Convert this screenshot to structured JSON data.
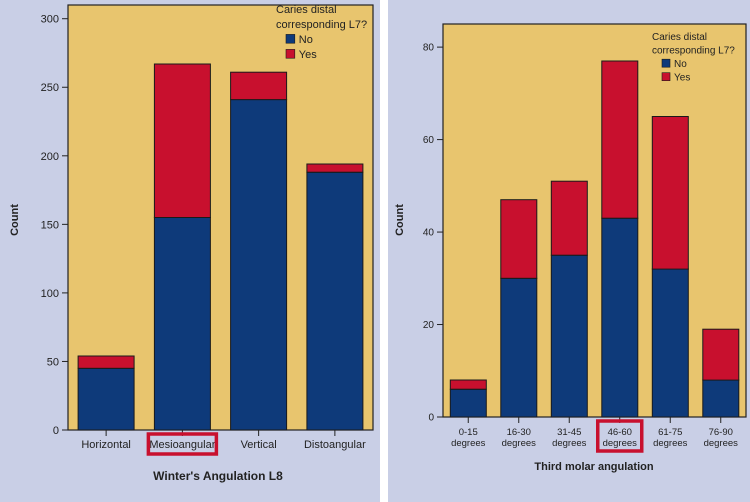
{
  "colors": {
    "panel_bg": "#c9cfe6",
    "plot_bg": "#e8c56e",
    "no": "#0e3a7a",
    "yes": "#c8102e",
    "highlight": "#c8102e"
  },
  "chart_data": [
    {
      "type": "bar",
      "stacked": true,
      "categories": [
        "Horizontal",
        "Mesioangular",
        "Vertical",
        "Distoangular"
      ],
      "series": [
        {
          "name": "No",
          "values": [
            45,
            155,
            241,
            188
          ]
        },
        {
          "name": "Yes",
          "values": [
            9,
            112,
            20,
            6
          ]
        }
      ],
      "title": "",
      "xlabel": "Winter's Angulation L8",
      "ylabel": "Count",
      "ylim": [
        0,
        310
      ],
      "yticks": [
        0,
        50,
        100,
        150,
        200,
        250,
        300
      ],
      "legend_title": "Caries distal corresponding L7?",
      "legend_position": "top-right",
      "grid": false,
      "highlighted_category": "Mesioangular"
    },
    {
      "type": "bar",
      "stacked": true,
      "categories": [
        "0-15 degrees",
        "16-30 degrees",
        "31-45 degrees",
        "46-60 degrees",
        "61-75 degrees",
        "76-90 degrees"
      ],
      "series": [
        {
          "name": "No",
          "values": [
            6,
            30,
            35,
            43,
            32,
            8
          ]
        },
        {
          "name": "Yes",
          "values": [
            2,
            17,
            16,
            34,
            33,
            11
          ]
        }
      ],
      "title": "",
      "xlabel": "Third molar angulation",
      "ylabel": "Count",
      "ylim": [
        0,
        85
      ],
      "yticks": [
        0,
        20,
        40,
        60,
        80
      ],
      "legend_title": "Caries distal corresponding L7?",
      "legend_position": "top-right",
      "grid": false,
      "highlighted_category": "46-60 degrees"
    }
  ]
}
